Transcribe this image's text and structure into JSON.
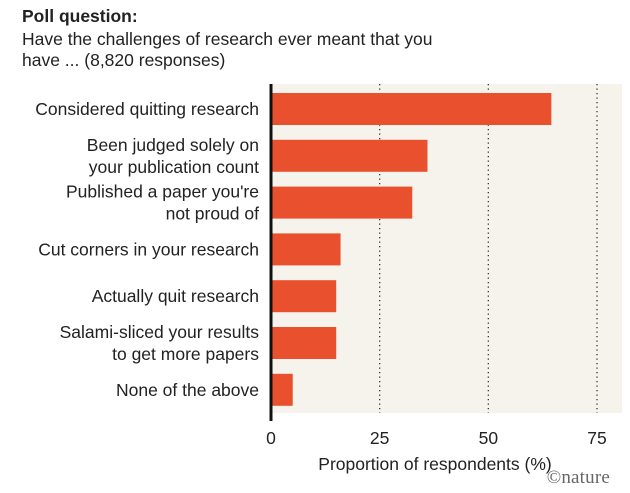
{
  "chart_data": {
    "type": "bar",
    "orientation": "horizontal",
    "title": "Poll question:",
    "subtitle": "Have the challenges of research ever meant that you have ... (8,820 responses)",
    "categories": [
      [
        "Considered quitting research"
      ],
      [
        "Been judged solely on",
        "your publication count"
      ],
      [
        "Published a paper you're",
        "not proud of"
      ],
      [
        "Cut corners in your research"
      ],
      [
        "Actually quit research"
      ],
      [
        "Salami-sliced your results",
        "to get more papers"
      ],
      [
        "None of the above"
      ]
    ],
    "values": [
      64.5,
      36,
      32.5,
      16,
      15,
      15,
      5
    ],
    "xlabel": "Proportion of respondents (%)",
    "ylabel": "",
    "xlim": [
      0,
      75
    ],
    "xticks": [
      "0",
      "25",
      "50",
      "75"
    ],
    "grid": "vertical-dotted",
    "colors": {
      "bar": "#e8502e",
      "plot_background": "#f5f3ec",
      "axis": "#111111",
      "grid": "#333333"
    }
  },
  "brand": "©nature"
}
